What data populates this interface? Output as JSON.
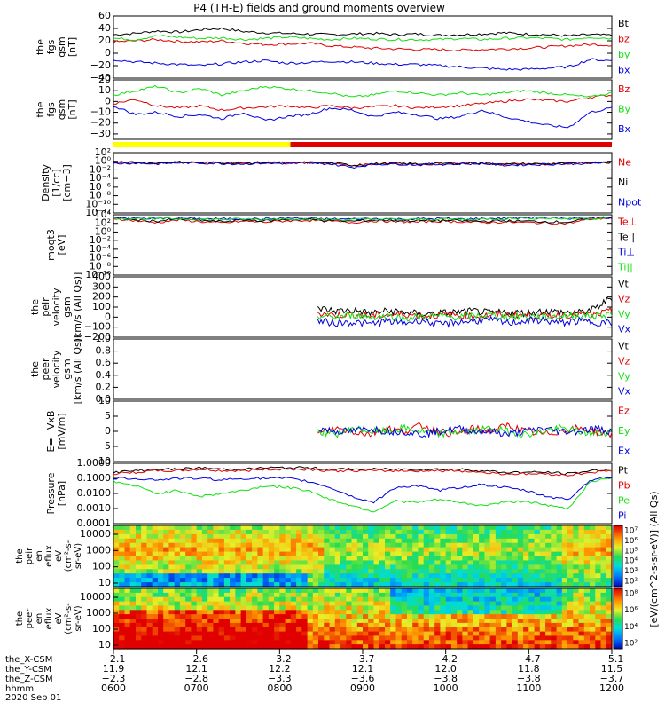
{
  "title": "P4 (TH-E) fields and ground moments overview",
  "date_label": "2020 Sep 01",
  "colors": {
    "black": "#000000",
    "red": "#e00000",
    "green": "#10e010",
    "blue": "#0000e0",
    "yellow": "#ffff00"
  },
  "chart_data": [
    {
      "type": "line",
      "ylabel": [
        "the",
        "fgs",
        "gsm",
        "[nT]"
      ],
      "ylim": [
        -40,
        60
      ],
      "ticks": [
        60,
        40,
        20,
        0,
        -20,
        -40
      ],
      "tick_labels": [
        "60",
        "40",
        "20",
        "0",
        "−20",
        "−40"
      ],
      "series": [
        {
          "name": "Bt",
          "color": "#000000",
          "values": [
            30,
            32,
            36,
            34,
            38,
            40,
            35,
            33,
            32,
            31,
            30,
            31,
            32,
            30,
            31,
            29,
            30,
            31,
            33,
            31,
            30,
            28,
            30,
            29
          ]
        },
        {
          "name": "bz",
          "color": "#e00000",
          "values": [
            18,
            20,
            22,
            19,
            18,
            20,
            16,
            14,
            15,
            16,
            12,
            10,
            8,
            7,
            6,
            6,
            5,
            6,
            7,
            8,
            10,
            12,
            14,
            13
          ]
        },
        {
          "name": "by",
          "color": "#10e010",
          "values": [
            24,
            22,
            28,
            26,
            24,
            25,
            22,
            24,
            26,
            24,
            22,
            24,
            23,
            22,
            22,
            22,
            24,
            22,
            24,
            25,
            24,
            22,
            26,
            24
          ]
        },
        {
          "name": "bx",
          "color": "#0000e0",
          "values": [
            -10,
            -14,
            -16,
            -18,
            -20,
            -17,
            -14,
            -12,
            -16,
            -15,
            -13,
            -14,
            -16,
            -18,
            -18,
            -20,
            -22,
            -24,
            -26,
            -26,
            -24,
            -22,
            -10,
            -12
          ]
        }
      ]
    },
    {
      "type": "line",
      "ylabel": [
        "the",
        "fgs",
        "gsm",
        "[nT]"
      ],
      "ylim": [
        -35,
        20
      ],
      "ticks": [
        20,
        10,
        0,
        -10,
        -20,
        -30
      ],
      "tick_labels": [
        "20",
        "10",
        "0",
        "−10",
        "−20",
        "−30"
      ],
      "series": [
        {
          "name": "Bz",
          "color": "#e00000",
          "values": [
            -2,
            2,
            -4,
            -6,
            -4,
            -8,
            -6,
            -5,
            -4,
            -6,
            -4,
            -6,
            -5,
            -4,
            -6,
            -5,
            -4,
            -2,
            0,
            2,
            1,
            0,
            4,
            6
          ]
        },
        {
          "name": "By",
          "color": "#10e010",
          "values": [
            6,
            10,
            14,
            8,
            12,
            6,
            10,
            14,
            12,
            10,
            8,
            4,
            6,
            10,
            8,
            6,
            8,
            6,
            8,
            10,
            8,
            6,
            4,
            8
          ]
        },
        {
          "name": "Bx",
          "color": "#0000e0",
          "values": [
            -4,
            -12,
            -10,
            -14,
            -12,
            -16,
            -10,
            -18,
            -14,
            -12,
            -6,
            -8,
            -14,
            -10,
            -12,
            -16,
            -14,
            -8,
            -14,
            -18,
            -22,
            -24,
            -10,
            -6
          ]
        }
      ]
    },
    {
      "type": "line",
      "ylabel": [
        "Density",
        "[1/cc]",
        "[cm−3]"
      ],
      "scale": "log",
      "ylim": [
        -12,
        2
      ],
      "tick_labels": [
        "10²",
        "10⁰",
        "10⁻²",
        "10⁻⁴",
        "10⁻⁶",
        "10⁻⁸",
        "10⁻¹⁰",
        "10⁻¹²"
      ],
      "series": [
        {
          "name": "Ne",
          "color": "#e00000",
          "values": [
            -0.4,
            -0.3,
            -0.5,
            -0.2,
            -0.3,
            -0.4,
            -0.5,
            -0.3,
            -0.4,
            -0.3,
            -0.5,
            -1.0,
            -0.6,
            -0.5,
            -0.7,
            -0.6,
            -0.5,
            -0.4,
            -0.8,
            -0.7,
            -0.6,
            -0.5,
            -0.3,
            -0.2
          ]
        },
        {
          "name": "Ni",
          "color": "#000000",
          "values": [
            -0.3,
            -0.3,
            -0.4,
            -0.2,
            -0.3,
            -0.3,
            -0.4,
            -0.3,
            -0.4,
            -0.3,
            -0.4,
            -0.9,
            -0.6,
            -0.5,
            -0.6,
            -0.5,
            -0.5,
            -0.4,
            -0.7,
            -0.6,
            -0.6,
            -0.5,
            -0.3,
            -0.2
          ]
        },
        {
          "name": "Npot",
          "color": "#0000e0",
          "values": [
            -0.5,
            -0.4,
            -0.6,
            -0.3,
            -0.4,
            -0.5,
            -0.6,
            -0.4,
            -0.5,
            -0.4,
            -0.6,
            -1.4,
            -0.7,
            -0.6,
            -0.8,
            -0.7,
            -0.6,
            -0.5,
            -0.9,
            -0.8,
            -0.7,
            -0.6,
            -0.4,
            -0.3
          ]
        }
      ]
    },
    {
      "type": "line",
      "ylabel": [
        "moqt3",
        "[eV]"
      ],
      "scale": "log",
      "ylim": [
        -10,
        4
      ],
      "tick_labels": [
        "10⁴",
        "10²",
        "10⁰",
        "10⁻²",
        "10⁻⁴",
        "10⁻⁶",
        "10⁻⁸",
        "10⁻¹⁰"
      ],
      "series": [
        {
          "name": "Te⊥",
          "color": "#e00000",
          "values": [
            3.2,
            2.6,
            2.2,
            2.8,
            2.4,
            2.1,
            2.5,
            2.3,
            2.6,
            2.7,
            2.5,
            2.2,
            2.6,
            2.4,
            2.3,
            2.5,
            2.4,
            2.2,
            2.3,
            2.2,
            2.1,
            2.0,
            3.0,
            3.3
          ]
        },
        {
          "name": "Te||",
          "color": "#000000",
          "values": [
            3.3,
            2.8,
            2.5,
            3.0,
            2.7,
            2.4,
            2.8,
            2.6,
            2.9,
            2.9,
            2.7,
            2.5,
            2.8,
            2.7,
            2.6,
            2.7,
            2.6,
            2.5,
            2.6,
            2.5,
            2.4,
            2.3,
            3.1,
            3.4
          ]
        },
        {
          "name": "Ti⊥",
          "color": "#0000e0",
          "values": [
            3.4,
            3.2,
            3.1,
            3.2,
            3.1,
            3.0,
            3.1,
            3.0,
            3.2,
            3.1,
            3.0,
            3.0,
            3.1,
            3.0,
            3.0,
            3.1,
            3.0,
            3.1,
            3.2,
            3.3,
            3.3,
            3.2,
            3.3,
            3.4
          ]
        },
        {
          "name": "Ti||",
          "color": "#10e010",
          "values": [
            3.3,
            3.1,
            3.0,
            3.1,
            3.0,
            2.9,
            3.0,
            2.9,
            3.1,
            3.0,
            2.9,
            2.9,
            3.0,
            2.9,
            2.9,
            3.0,
            2.9,
            3.0,
            3.1,
            3.2,
            3.2,
            3.1,
            3.2,
            3.3
          ]
        }
      ]
    },
    {
      "type": "line",
      "ylabel": [
        "the",
        "peir",
        "velocity",
        "gsm",
        "[km/s (All Qs)]"
      ],
      "ylim": [
        -200,
        400
      ],
      "ticks": [
        400,
        300,
        200,
        100,
        0,
        -100,
        -200
      ],
      "tick_labels": [
        "400",
        "300",
        "200",
        "100",
        "0",
        "−100",
        "−200"
      ],
      "x_start": 0.41,
      "series": [
        {
          "name": "Vt",
          "color": "#000000",
          "values": [
            90,
            60,
            70,
            40,
            60,
            50,
            30,
            40,
            50,
            60,
            40,
            50,
            40,
            60,
            50,
            40,
            80,
            200
          ]
        },
        {
          "name": "Vz",
          "color": "#e00000",
          "values": [
            40,
            20,
            30,
            10,
            20,
            30,
            10,
            20,
            20,
            10,
            20,
            30,
            20,
            10,
            20,
            30,
            20,
            60
          ]
        },
        {
          "name": "Vy",
          "color": "#10e010",
          "values": [
            10,
            0,
            20,
            0,
            10,
            -10,
            0,
            10,
            0,
            10,
            20,
            0,
            10,
            0,
            10,
            20,
            10,
            40
          ]
        },
        {
          "name": "Vx",
          "color": "#0000e0",
          "values": [
            -40,
            -60,
            -50,
            -70,
            -40,
            -60,
            -30,
            -80,
            -50,
            -40,
            -30,
            -60,
            -40,
            -30,
            -60,
            -40,
            -50,
            -60
          ]
        }
      ]
    },
    {
      "type": "line",
      "ylabel": [
        "the",
        "peer",
        "velocity",
        "gsm",
        "[km/s (All Qs)]"
      ],
      "ylim": [
        0,
        1
      ],
      "ticks": [
        1.0,
        0.8,
        0.6,
        0.4,
        0.2,
        0.0
      ],
      "tick_labels": [
        "1.0",
        "0.8",
        "0.6",
        "0.4",
        "0.2",
        "0.0"
      ],
      "series": [
        {
          "name": "Vt",
          "color": "#000000",
          "values": []
        },
        {
          "name": "Vz",
          "color": "#e00000",
          "values": []
        },
        {
          "name": "Vy",
          "color": "#10e010",
          "values": []
        },
        {
          "name": "Vx",
          "color": "#0000e0",
          "values": []
        }
      ]
    },
    {
      "type": "line",
      "ylabel": [
        "E=−VxB",
        "[mV/m]"
      ],
      "ylim": [
        -10,
        10
      ],
      "ticks": [
        10,
        5,
        0,
        -5,
        -10
      ],
      "tick_labels": [
        "10",
        "5",
        "0",
        "−5",
        "−10"
      ],
      "x_start": 0.41,
      "series": [
        {
          "name": "Ez",
          "color": "#e00000",
          "values": [
            -1,
            1,
            0,
            -1,
            1,
            0,
            2,
            0,
            -1,
            1,
            0,
            2,
            0,
            -1,
            0,
            1,
            0,
            -1
          ]
        },
        {
          "name": "Ey",
          "color": "#10e010",
          "values": [
            0,
            -1,
            1,
            0,
            0,
            1,
            0,
            -1,
            0,
            0,
            1,
            0,
            -1,
            0,
            1,
            0,
            -1,
            0
          ]
        },
        {
          "name": "Ex",
          "color": "#0000e0",
          "values": [
            1,
            0,
            0,
            1,
            0,
            0,
            -1,
            0,
            1,
            0,
            0,
            -1,
            0,
            1,
            0,
            0,
            1,
            0
          ]
        }
      ]
    },
    {
      "type": "line",
      "ylabel": [
        "Pressure",
        "[nPa]"
      ],
      "scale": "log",
      "ylim": [
        -4,
        0
      ],
      "tick_labels": [
        "1.0000",
        "0.1000",
        "0.0100",
        "0.0010",
        "0.0001"
      ],
      "series": [
        {
          "name": "Pt",
          "color": "#000000",
          "values": [
            -0.6,
            -0.5,
            -0.4,
            -0.4,
            -0.3,
            -0.4,
            -0.4,
            -0.3,
            -0.3,
            -0.3,
            -0.4,
            -0.4,
            -0.4,
            -0.4,
            -0.4,
            -0.4,
            -0.4,
            -0.5,
            -0.6,
            -0.6,
            -0.6,
            -0.7,
            -0.5,
            -0.4
          ]
        },
        {
          "name": "Pb",
          "color": "#e00000",
          "values": [
            -0.7,
            -0.6,
            -0.5,
            -0.5,
            -0.4,
            -0.5,
            -0.5,
            -0.4,
            -0.4,
            -0.4,
            -0.5,
            -0.5,
            -0.5,
            -0.5,
            -0.5,
            -0.5,
            -0.5,
            -0.6,
            -0.7,
            -0.7,
            -0.7,
            -0.8,
            -0.6,
            -0.5
          ]
        },
        {
          "name": "Pe",
          "color": "#10e010",
          "values": [
            -1.2,
            -1.5,
            -2.0,
            -1.8,
            -2.2,
            -2.0,
            -1.8,
            -1.5,
            -1.6,
            -1.8,
            -2.4,
            -2.8,
            -3.2,
            -2.5,
            -2.6,
            -2.4,
            -2.6,
            -2.8,
            -2.6,
            -2.5,
            -2.8,
            -3.0,
            -1.2,
            -1.0
          ]
        },
        {
          "name": "Pi",
          "color": "#0000e0",
          "values": [
            -1.0,
            -1.0,
            -1.1,
            -1.0,
            -1.0,
            -1.1,
            -1.0,
            -1.0,
            -1.0,
            -1.2,
            -1.6,
            -2.2,
            -2.6,
            -1.6,
            -1.5,
            -1.8,
            -1.6,
            -1.4,
            -1.6,
            -1.8,
            -2.2,
            -2.4,
            -1.1,
            -0.9
          ]
        }
      ]
    },
    {
      "type": "heatmap",
      "ylabel": [
        "the",
        "peir",
        "en",
        "eflux",
        "eV",
        "(cm²-s-",
        "sr-eV)"
      ],
      "tick_labels": [
        "10000",
        "1000",
        "100",
        "10"
      ],
      "colorbar_labels": [
        "10⁷",
        "10⁶",
        "10⁵",
        "10⁴",
        "10³",
        "10²"
      ],
      "colorbar_unit": "[eV/(cm^2-s-sr-eV)] (All Qs)"
    },
    {
      "type": "heatmap",
      "ylabel": [
        "the",
        "peer",
        "en",
        "eflux",
        "eV",
        "(cm²-s-",
        "sr-eV)"
      ],
      "tick_labels": [
        "10000",
        "1000",
        "100",
        "10"
      ],
      "colorbar_labels": [
        "10⁸",
        "10⁶",
        "10⁴",
        "10²"
      ],
      "colorbar_unit": "[eV/(cm^2-s-sr-eV)] (All Qs)"
    }
  ],
  "x_axis": {
    "rows": [
      {
        "label": "the_X-CSM",
        "values": [
          "−2.1",
          "−2.6",
          "−3.2",
          "−3.7",
          "−4.2",
          "−4.7",
          "−5.1"
        ]
      },
      {
        "label": "the_Y-CSM",
        "values": [
          "11.9",
          "12.1",
          "12.2",
          "12.1",
          "12.0",
          "11.8",
          "11.5"
        ]
      },
      {
        "label": "the_Z-CSM",
        "values": [
          "−2.3",
          "−2.8",
          "−3.3",
          "−3.6",
          "−3.8",
          "−3.8",
          "−3.7"
        ]
      },
      {
        "label": "hhmm",
        "values": [
          "0600",
          "0700",
          "0800",
          "0900",
          "1000",
          "1100",
          "1200"
        ]
      }
    ]
  },
  "mode_bar": {
    "segments": [
      {
        "color": "#ffff00",
        "to": 0.355
      },
      {
        "color": "#e00000",
        "to": 1.0
      }
    ]
  }
}
